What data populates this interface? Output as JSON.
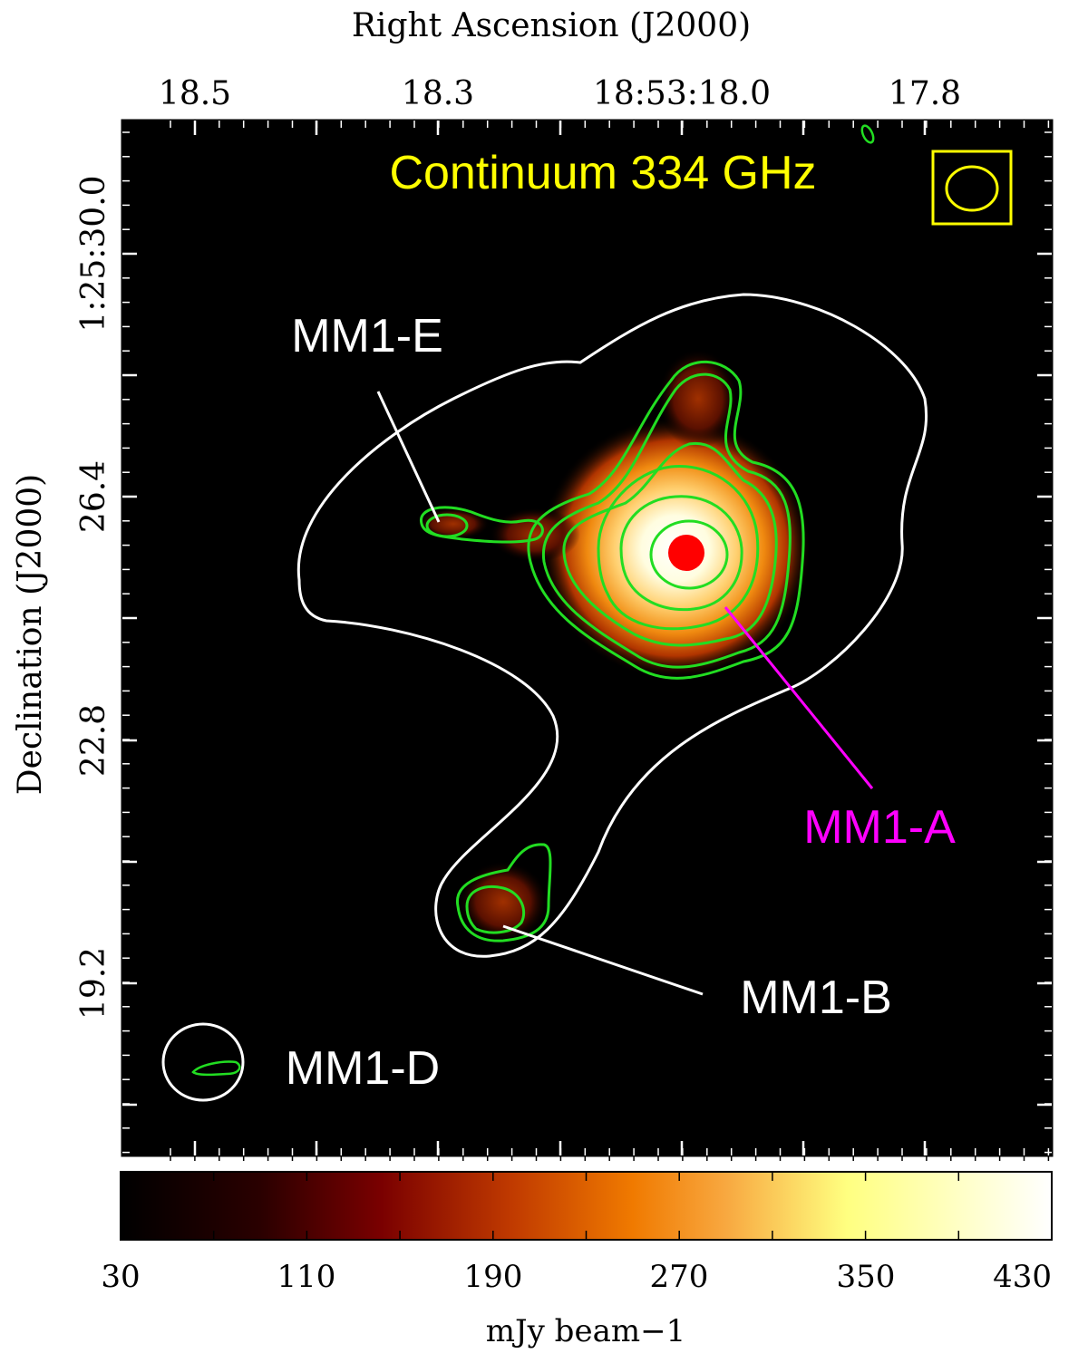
{
  "figure": {
    "x_axis_title": "Right Ascension (J2000)",
    "y_axis_title": "Declination (J2000)",
    "ra_ticks": [
      "18.5",
      "18.3",
      "18:53:18.0",
      "17.8"
    ],
    "dec_ticks": [
      "1:25:30.0",
      "26.4",
      "22.8",
      "19.2"
    ],
    "panel_title": "Continuum 334 GHz",
    "sources": {
      "mm1_e": "MM1-E",
      "mm1_a": "MM1-A",
      "mm1_b": "MM1-B",
      "mm1_d": "MM1-D"
    },
    "colorbar": {
      "ticks": [
        "30",
        "110",
        "190",
        "270",
        "350",
        "430"
      ],
      "label": "mJy beam−1",
      "range": [
        30,
        430
      ]
    },
    "colors": {
      "title": "#ffff00",
      "label_a": "#ff00ff",
      "contours_green": "#22dd22",
      "contour_white": "#ffffff",
      "peak_marker": "#ff0000"
    }
  }
}
